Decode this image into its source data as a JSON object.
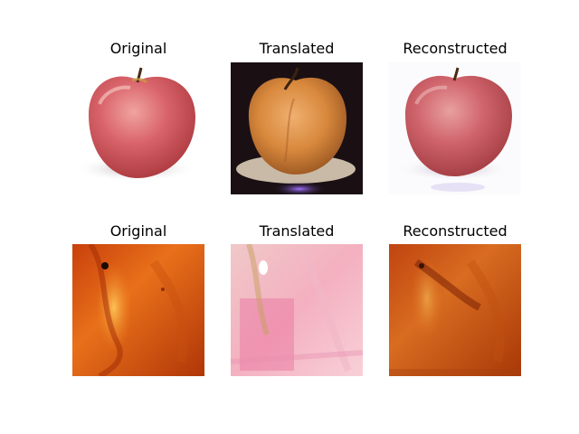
{
  "figure": {
    "rows": [
      {
        "panels": [
          {
            "title": "Original",
            "image": "red-apple-white-background"
          },
          {
            "title": "Translated",
            "image": "orange-apple-dark-background"
          },
          {
            "title": "Reconstructed",
            "image": "red-apple-white-background-blurry"
          }
        ]
      },
      {
        "panels": [
          {
            "title": "Original",
            "image": "orange-texture-closeup"
          },
          {
            "title": "Translated",
            "image": "pink-texture-closeup"
          },
          {
            "title": "Reconstructed",
            "image": "orange-texture-closeup-blurry"
          }
        ]
      }
    ]
  }
}
